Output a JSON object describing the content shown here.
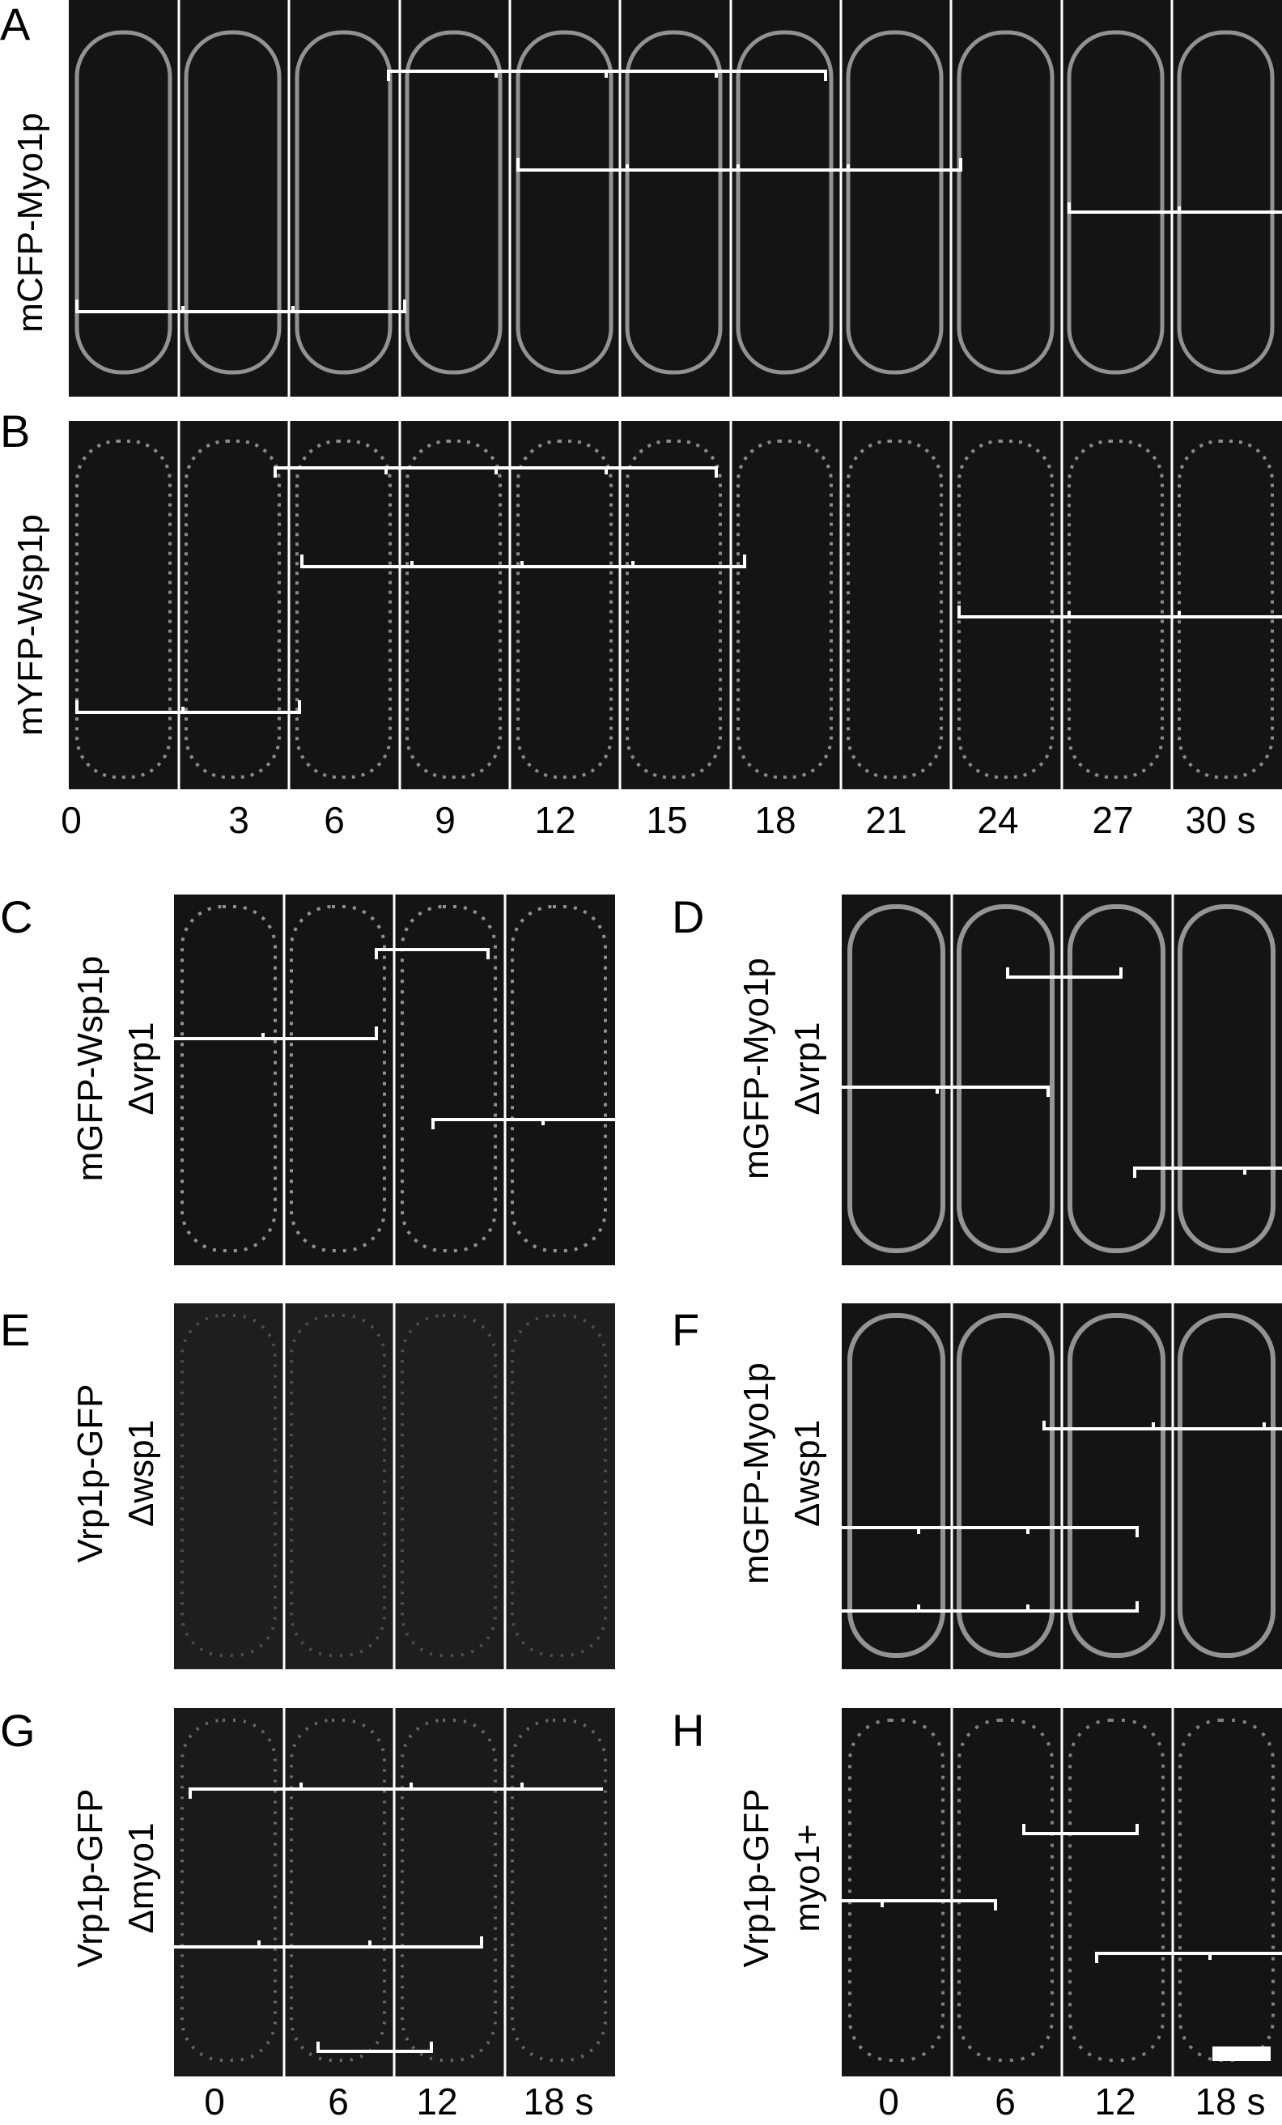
{
  "panels": {
    "A": {
      "letter": "A",
      "label": "mCFP-Myo1p"
    },
    "B": {
      "letter": "B",
      "label": "mYFP-Wsp1p"
    },
    "C": {
      "letter": "C",
      "label1": "mGFP-Wsp1p",
      "label2": "Δvrp1"
    },
    "D": {
      "letter": "D",
      "label1": "mGFP-Myo1p",
      "label2": "Δvrp1"
    },
    "E": {
      "letter": "E",
      "label1": "Vrp1p-GFP",
      "label2": "Δwsp1"
    },
    "F": {
      "letter": "F",
      "label1": "mGFP-Myo1p",
      "label2": "Δwsp1"
    },
    "G": {
      "letter": "G",
      "label1": "Vrp1p-GFP",
      "label2": "Δmyo1"
    },
    "H": {
      "letter": "H",
      "label1": "Vrp1p-GFP",
      "label2": "myo1+"
    }
  },
  "top_time_labels": [
    "0",
    "3",
    "6",
    "9",
    "12",
    "15",
    "18",
    "21",
    "24",
    "27",
    "30 s"
  ],
  "bottom_left_time_labels": [
    "0",
    "6",
    "12",
    "18 s"
  ],
  "bottom_right_time_labels": [
    "0",
    "6",
    "12",
    "18 s"
  ],
  "colors": {
    "background": "#ffffff",
    "micrograph": "#141414",
    "overlay": "#ffffff",
    "text": "#000000"
  }
}
